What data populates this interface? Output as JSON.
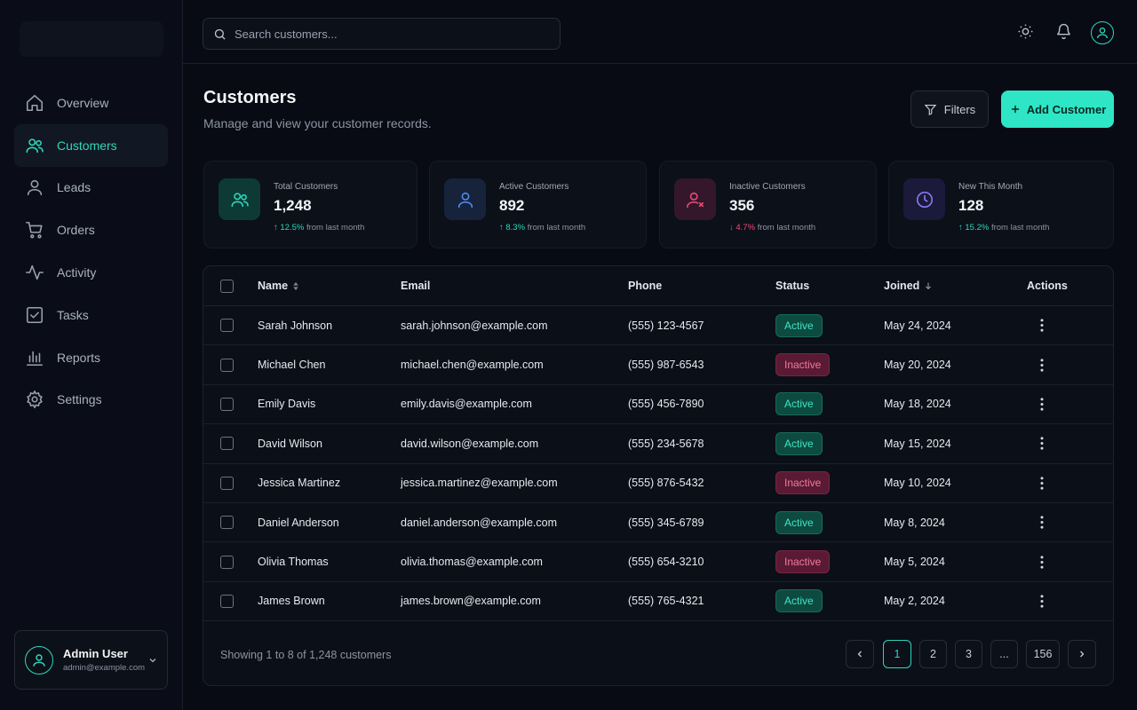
{
  "sidebar": {
    "items": [
      {
        "label": "Overview",
        "icon": "home-icon"
      },
      {
        "label": "Customers",
        "icon": "users-icon",
        "active": true
      },
      {
        "label": "Leads",
        "icon": "user-icon"
      },
      {
        "label": "Orders",
        "icon": "cart-icon"
      },
      {
        "label": "Activity",
        "icon": "activity-icon"
      },
      {
        "label": "Tasks",
        "icon": "checkbox-icon"
      },
      {
        "label": "Reports",
        "icon": "bar-chart-icon"
      },
      {
        "label": "Settings",
        "icon": "gear-icon"
      }
    ],
    "user": {
      "name": "Admin User",
      "email": "admin@example.com"
    }
  },
  "topbar": {
    "search_placeholder": "Search customers...",
    "icons": [
      "sun-icon",
      "bell-icon",
      "avatar-icon"
    ]
  },
  "header": {
    "title": "Customers",
    "subtitle": "Manage and view your customer records.",
    "filters_label": "Filters",
    "add_label": "Add Customer"
  },
  "stats": [
    {
      "label": "Total Customers",
      "value": "1,248",
      "trend": "↑ 12.5%",
      "trend_dir": "up",
      "trend_text": "from last month",
      "icon": "users-icon",
      "color": "#2fd6bb"
    },
    {
      "label": "Active Customers",
      "value": "892",
      "trend": "↑ 8.3%",
      "trend_dir": "up",
      "trend_text": "from last month",
      "icon": "user-icon",
      "color": "#4f8ff7"
    },
    {
      "label": "Inactive Customers",
      "value": "356",
      "trend": "↓ 4.7%",
      "trend_dir": "down",
      "trend_text": "from last month",
      "icon": "user-x-icon",
      "color": "#ef4d7a"
    },
    {
      "label": "New This Month",
      "value": "128",
      "trend": "↑ 15.2%",
      "trend_dir": "up",
      "trend_text": "from last month",
      "icon": "clock-icon",
      "color": "#8b7cf6"
    }
  ],
  "table": {
    "columns": {
      "name": "Name",
      "email": "Email",
      "phone": "Phone",
      "status": "Status",
      "joined": "Joined",
      "actions": "Actions"
    },
    "rows": [
      {
        "name": "Sarah Johnson",
        "email": "sarah.johnson@example.com",
        "phone": "(555) 123-4567",
        "status": "Active",
        "joined": "May 24, 2024"
      },
      {
        "name": "Michael Chen",
        "email": "michael.chen@example.com",
        "phone": "(555) 987-6543",
        "status": "Inactive",
        "joined": "May 20, 2024"
      },
      {
        "name": "Emily Davis",
        "email": "emily.davis@example.com",
        "phone": "(555) 456-7890",
        "status": "Active",
        "joined": "May 18, 2024"
      },
      {
        "name": "David Wilson",
        "email": "david.wilson@example.com",
        "phone": "(555) 234-5678",
        "status": "Active",
        "joined": "May 15, 2024"
      },
      {
        "name": "Jessica Martinez",
        "email": "jessica.martinez@example.com",
        "phone": "(555) 876-5432",
        "status": "Inactive",
        "joined": "May 10, 2024"
      },
      {
        "name": "Daniel Anderson",
        "email": "daniel.anderson@example.com",
        "phone": "(555) 345-6789",
        "status": "Active",
        "joined": "May 8, 2024"
      },
      {
        "name": "Olivia Thomas",
        "email": "olivia.thomas@example.com",
        "phone": "(555) 654-3210",
        "status": "Inactive",
        "joined": "May 5, 2024"
      },
      {
        "name": "James Brown",
        "email": "james.brown@example.com",
        "phone": "(555) 765-4321",
        "status": "Active",
        "joined": "May 2, 2024"
      }
    ],
    "footer_text": "Showing 1 to 8 of 1,248 customers",
    "pages": [
      "1",
      "2",
      "3",
      "...",
      "156"
    ],
    "current_page": "1"
  }
}
